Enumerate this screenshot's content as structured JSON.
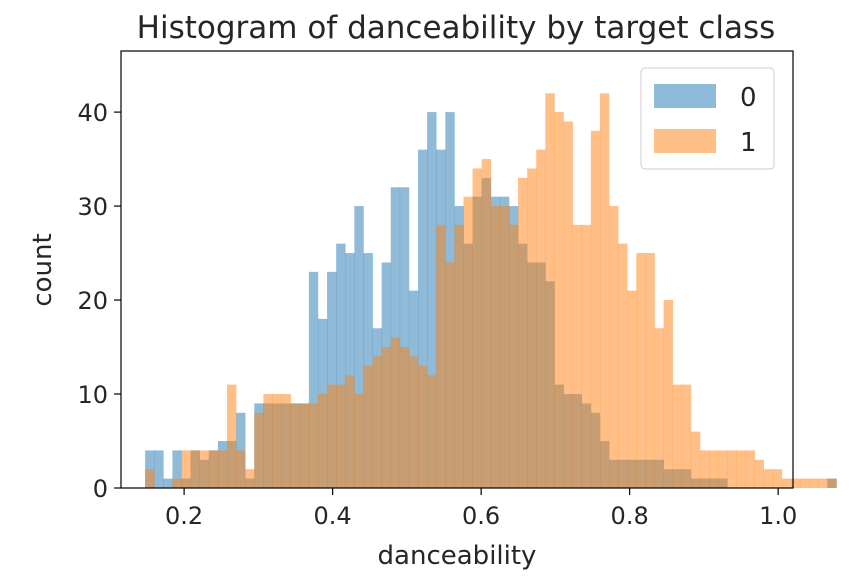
{
  "chart_data": {
    "type": "histogram",
    "title": "Histogram of danceability by target class",
    "xlabel": "danceability",
    "ylabel": "count",
    "xlim": [
      0.115,
      1.02
    ],
    "ylim": [
      0,
      46.5
    ],
    "xticks": [
      0.2,
      0.4,
      0.6,
      0.8,
      1.0
    ],
    "xtick_labels": [
      "0.2",
      "0.4",
      "0.6",
      "0.8",
      "1.0"
    ],
    "yticks": [
      0,
      10,
      20,
      30,
      40
    ],
    "ytick_labels": [
      "0",
      "10",
      "20",
      "30",
      "40"
    ],
    "grid": false,
    "legend_position": "top-right",
    "bin_start": 0.1475,
    "bin_width": 0.01225,
    "series": [
      {
        "name": "0",
        "color": "#1f77b4",
        "opacity": 0.5,
        "values": [
          4,
          4,
          1,
          4,
          1,
          4,
          3,
          4,
          5,
          5,
          8,
          1,
          9,
          9,
          9,
          9,
          9,
          9,
          23,
          18,
          23,
          26,
          25,
          30,
          25,
          17,
          24,
          32,
          32,
          21,
          36,
          40,
          36,
          40,
          30,
          26,
          31,
          33,
          31,
          31,
          30,
          26,
          24,
          24,
          22,
          11,
          10,
          10,
          9,
          8,
          5,
          3,
          3,
          3,
          3,
          3,
          3,
          2,
          2,
          2,
          1,
          1,
          1,
          1,
          0,
          0,
          0,
          0,
          0,
          0,
          0,
          0,
          0,
          0,
          0,
          1
        ]
      },
      {
        "name": "1",
        "color": "#ff7f0e",
        "opacity": 0.5,
        "values": [
          2,
          0,
          0,
          1,
          4,
          4,
          4,
          4,
          4,
          11,
          4,
          2,
          8,
          10,
          10,
          10,
          9,
          9,
          9,
          10,
          11,
          11,
          12,
          10,
          13,
          14,
          15,
          16,
          15,
          14,
          13,
          12,
          28,
          24,
          28,
          31,
          34,
          35,
          30,
          30,
          28,
          33,
          34,
          36,
          42,
          40,
          39,
          28,
          28,
          38,
          42,
          30,
          26,
          21,
          25,
          25,
          17,
          20,
          11,
          11,
          6,
          4,
          4,
          4,
          4,
          4,
          4,
          3,
          2,
          2,
          1,
          1,
          1,
          1,
          1,
          1
        ]
      }
    ]
  }
}
